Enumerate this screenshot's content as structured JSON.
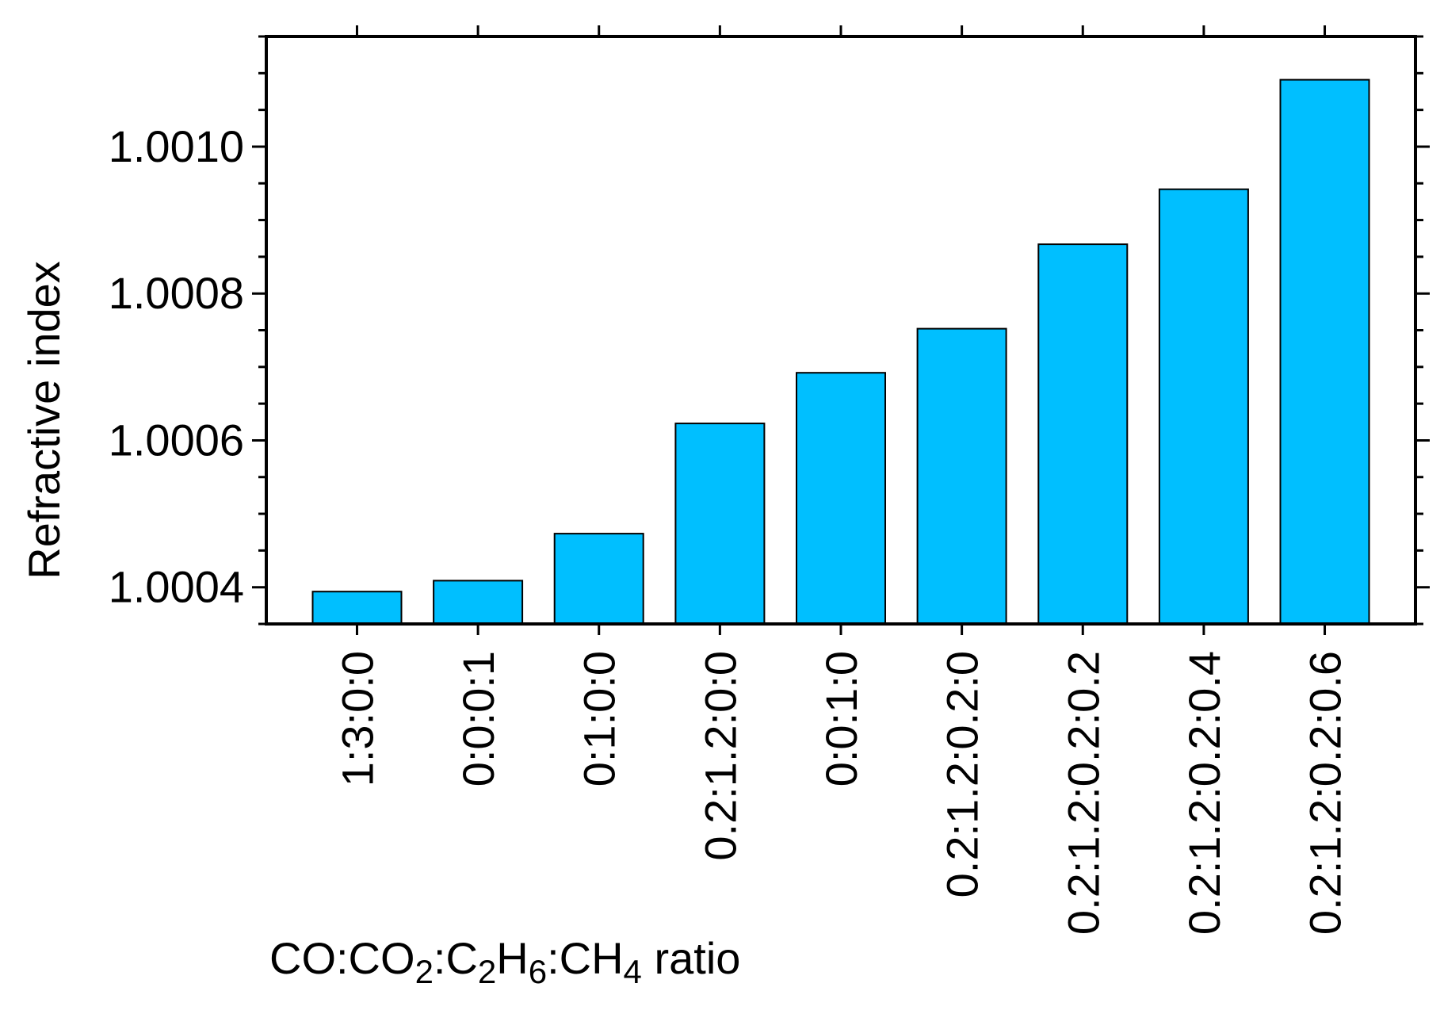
{
  "chart_data": {
    "type": "bar",
    "categories": [
      "1:3:0:0",
      "0:0:0:1",
      "0:1:0:0",
      "0.2:1.2:0:0",
      "0:0:1:0",
      "0.2:1.2:0.2:0",
      "0.2:1.2:0.2:0.2",
      "0.2:1.2:0.2:0.4",
      "0.2:1.2:0.2:0.6"
    ],
    "values": [
      1.000394,
      1.000409,
      1.000473,
      1.000623,
      1.000692,
      1.000752,
      1.000867,
      1.000942,
      1.001091
    ],
    "ylabel": "Refractive index",
    "xlabel": {
      "parts": [
        {
          "text": "CO:CO",
          "sub": false
        },
        {
          "text": "2",
          "sub": true
        },
        {
          "text": ":C",
          "sub": false
        },
        {
          "text": "2",
          "sub": true
        },
        {
          "text": "H",
          "sub": false
        },
        {
          "text": "6",
          "sub": true
        },
        {
          "text": ":CH",
          "sub": false
        },
        {
          "text": "4",
          "sub": true
        },
        {
          "text": " ratio",
          "sub": false
        }
      ]
    },
    "ylim": [
      1.00035,
      1.00115
    ],
    "yticks": [
      "1.0004",
      "1.0006",
      "1.0008",
      "1.0010"
    ],
    "ytick_values": [
      1.0004,
      1.0006,
      1.0008,
      1.001
    ],
    "grid": false,
    "bar_color": "#00BFFF",
    "edge_color": "#000000"
  }
}
